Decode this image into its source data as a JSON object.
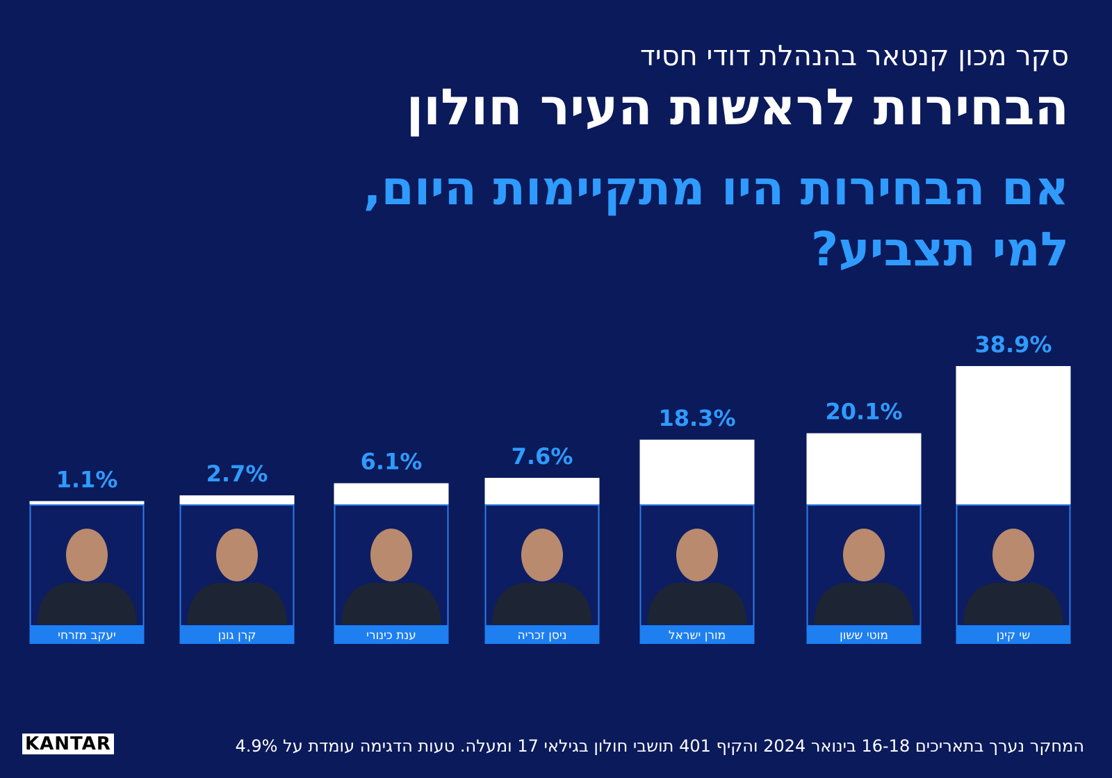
{
  "chart_data": {
    "type": "bar",
    "subtitle": "סקר מכון קנטאר בהנהלת דודי חסיד",
    "title": "הבחירות לראשות העיר חולון",
    "question": "אם הבחירות היו מתקיימות היום, למי תצביע?",
    "categories": [
      "שי קינן",
      "מוטי ששון",
      "מורן ישראל",
      "ניסן זכריה",
      "ענת כינורי",
      "קרן גונן",
      "יעקב מזרחי"
    ],
    "values": [
      38.9,
      20.1,
      18.3,
      7.6,
      6.1,
      2.7,
      1.1
    ],
    "value_labels": [
      "38.9%",
      "20.1%",
      "18.3%",
      "7.6%",
      "6.1%",
      "2.7%",
      "1.1%"
    ],
    "color": "#ffffff",
    "label_color": "#2f9bff",
    "footnote": "המחקר נערך בתאריכים 16-18 בינואר 2024 והקיף 401 תושבי חולון בגילאי 17 ומעלה. טעות הדגימה עומדת על 4.9%",
    "source": "KANTAR"
  }
}
